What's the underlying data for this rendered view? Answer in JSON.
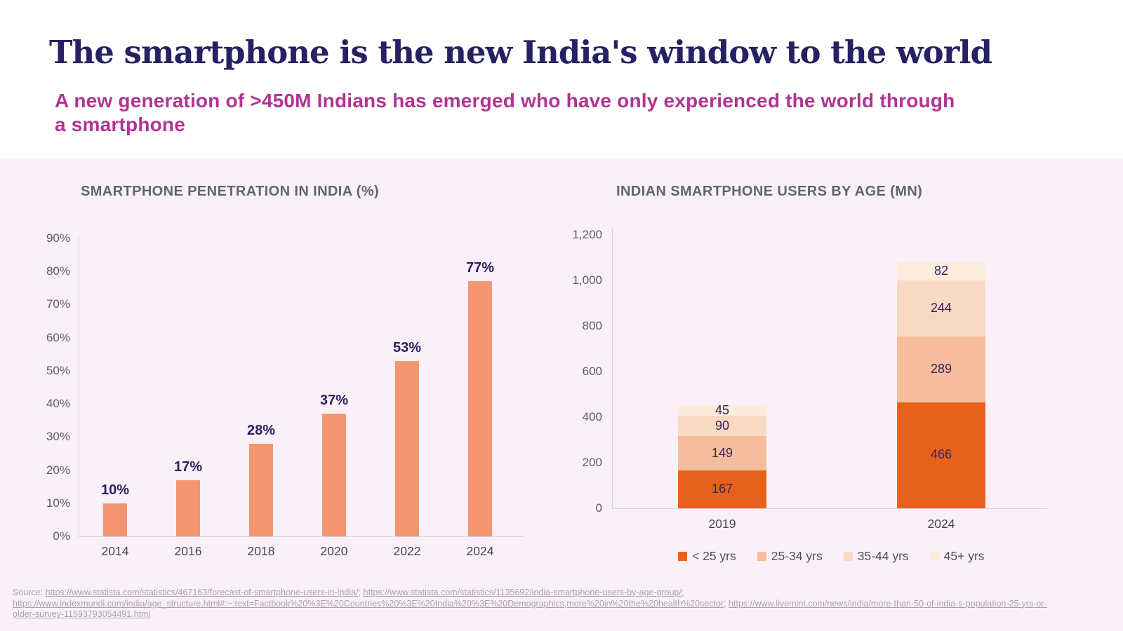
{
  "header": {
    "title": "The smartphone is the new India's window to the world",
    "subtitle_line1": "A new generation of >450M Indians has emerged who have only experienced the world through",
    "subtitle_line2": "a smartphone",
    "title_color": "#272163",
    "subtitle_color": "#b13394"
  },
  "panel_background_color": "#fbf0f9",
  "chart_data": [
    {
      "type": "bar",
      "title": "SMARTPHONE PENETRATION IN INDIA (%)",
      "categories": [
        "2014",
        "2016",
        "2018",
        "2020",
        "2022",
        "2024"
      ],
      "values": [
        10,
        17,
        28,
        37,
        53,
        77
      ],
      "data_labels": [
        "10%",
        "17%",
        "28%",
        "37%",
        "53%",
        "77%"
      ],
      "xlabel": "",
      "ylabel": "",
      "ylim": [
        0,
        90
      ],
      "ytick_step": 10,
      "ytick_labels": [
        "0%",
        "10%",
        "20%",
        "30%",
        "40%",
        "50%",
        "60%",
        "70%",
        "80%",
        "90%"
      ],
      "grid": false,
      "bar_color": "#f4966f",
      "data_label_color": "#2b2161"
    },
    {
      "type": "bar",
      "subtype": "stacked",
      "title": "INDIAN SMARTPHONE USERS BY AGE (MN)",
      "categories": [
        "2019",
        "2024"
      ],
      "series": [
        {
          "name": "< 25 yrs",
          "color": "#e8611b",
          "values": [
            167,
            466
          ]
        },
        {
          "name": "25-34 yrs",
          "color": "#f5bd9b",
          "values": [
            149,
            289
          ]
        },
        {
          "name": "35-44 yrs",
          "color": "#f9d8c4",
          "values": [
            90,
            244
          ]
        },
        {
          "name": "45+ yrs",
          "color": "#fcecdc",
          "values": [
            45,
            82
          ]
        }
      ],
      "totals": [
        451,
        1081
      ],
      "xlabel": "",
      "ylabel": "",
      "ylim": [
        0,
        1200
      ],
      "ytick_step": 200,
      "ytick_labels": [
        "0",
        "200",
        "400",
        "600",
        "800",
        "1,000",
        "1,200"
      ],
      "grid": false,
      "legend_position": "bottom",
      "legend": [
        "< 25 yrs",
        "25-34 yrs",
        "35-44 yrs",
        "45+ yrs"
      ],
      "data_label_color": "#33265c"
    }
  ],
  "footer": {
    "lines": [
      {
        "segments": [
          {
            "text": "Source",
            "link": false
          },
          {
            "text": ": ",
            "link": false
          },
          {
            "text": "https://www.statista.com/statistics/467163/forecast-of-smartphone-users-in-india/",
            "link": true
          },
          {
            "text": "; ",
            "link": false
          },
          {
            "text": "https://www.statista.com/statistics/1135692/india-smartphone-users-by-age-group/;",
            "link": true
          }
        ]
      },
      {
        "segments": [
          {
            "text": "https://www.indexmundi.com/india/age_structure.html#:~:text=Factbook%20%3E%20Countries%20%3E%20India%20%3E%20Demographics,more%20in%20the%20health%20sector",
            "link": true
          },
          {
            "text": "; ",
            "link": false
          },
          {
            "text": "https://www.livemint.com/news/india/more-than-50-of-india-s-population-25-yrs-or-",
            "link": true
          }
        ]
      },
      {
        "segments": [
          {
            "text": "older-survey-11593793054491.html",
            "link": true
          }
        ]
      }
    ]
  }
}
